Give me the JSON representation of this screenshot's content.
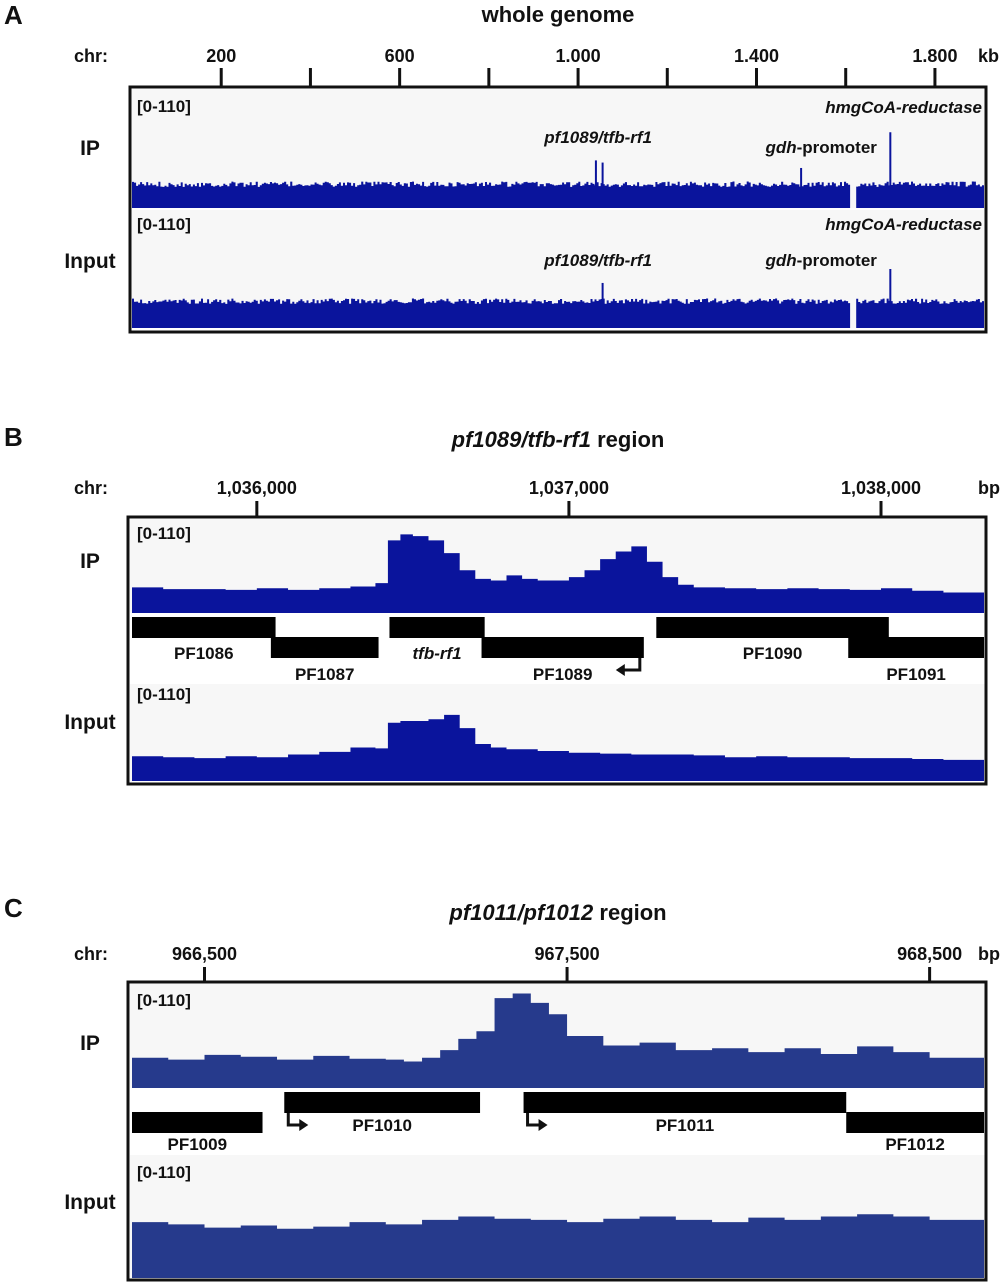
{
  "colors": {
    "signal_a": "#0a149c",
    "signal_b": "#0a149c",
    "signal_c": "#263a8c",
    "track_bg": "#f7f7f7",
    "frame": "#111111",
    "gene": "#000000"
  },
  "chart_data": [
    {
      "type": "area",
      "panel": "A",
      "title_parts": [
        {
          "text": "whole genome",
          "italic": false
        }
      ],
      "axis_prefix": "chr:",
      "unit": "kb",
      "xlim": [
        0,
        1910
      ],
      "major_ticks": [
        {
          "value": 200,
          "label": "200"
        },
        {
          "value": 600,
          "label": "600"
        },
        {
          "value": 1000,
          "label": "1.000"
        },
        {
          "value": 1400,
          "label": "1.400"
        },
        {
          "value": 1800,
          "label": "1.800"
        }
      ],
      "minor_ticks": [
        400,
        800,
        1200,
        1600
      ],
      "tracks": [
        {
          "name": "IP",
          "range_label": "[0-110]",
          "ylim": [
            0,
            110
          ],
          "baseline": 22,
          "gap": [
            1610,
            1625
          ],
          "peaks": [
            {
              "x": 1040,
              "y": 44
            },
            {
              "x": 1055,
              "y": 42
            },
            {
              "x": 1500,
              "y": 37
            },
            {
              "x": 1700,
              "y": 70
            }
          ],
          "annotations": [
            {
              "parts": [
                {
                  "text": "hmgCoA-reductase",
                  "italic": true
                }
              ],
              "x": 1910,
              "level": 1,
              "anchor": "end"
            },
            {
              "parts": [
                {
                  "text": "pf1089/tfb-rf1",
                  "italic": true
                }
              ],
              "x": 1045,
              "level": 2,
              "anchor": "middle"
            },
            {
              "parts": [
                {
                  "text": "gdh",
                  "italic": true
                },
                {
                  "text": "-promoter",
                  "italic": false
                }
              ],
              "x": 1545,
              "level": 3,
              "anchor": "middle"
            }
          ]
        },
        {
          "name": "Input",
          "range_label": "[0-110]",
          "ylim": [
            0,
            110
          ],
          "baseline": 25,
          "gap": [
            1610,
            1625
          ],
          "peaks": [
            {
              "x": 1055,
              "y": 42
            },
            {
              "x": 1700,
              "y": 55
            }
          ],
          "annotations": [
            {
              "parts": [
                {
                  "text": "hmgCoA-reductase",
                  "italic": true
                }
              ],
              "x": 1910,
              "level": 1,
              "anchor": "end"
            },
            {
              "parts": [
                {
                  "text": "pf1089/tfb-rf1",
                  "italic": true
                }
              ],
              "x": 1045,
              "level": 2,
              "anchor": "middle"
            },
            {
              "parts": [
                {
                  "text": "gdh",
                  "italic": true
                },
                {
                  "text": "-promoter",
                  "italic": false
                }
              ],
              "x": 1545,
              "level": 2,
              "anchor": "middle"
            }
          ]
        }
      ]
    },
    {
      "type": "area",
      "panel": "B",
      "title_parts": [
        {
          "text": "pf1089/tfb-rf1",
          "italic": true
        },
        {
          "text": " region",
          "italic": false
        }
      ],
      "axis_prefix": "chr:",
      "unit": "bp",
      "xlim": [
        1035600,
        1038330
      ],
      "major_ticks": [
        {
          "value": 1036000,
          "label": "1,036,000"
        },
        {
          "value": 1037000,
          "label": "1,037,000"
        },
        {
          "value": 1038000,
          "label": "1,038,000"
        }
      ],
      "minor_ticks": [],
      "genes": [
        {
          "name": "PF1086",
          "italic": false,
          "start": 1035600,
          "end": 1036060,
          "row": 0,
          "arrow": null
        },
        {
          "name": "PF1087",
          "italic": false,
          "start": 1036045,
          "end": 1036390,
          "row": 1,
          "arrow": null
        },
        {
          "name": "tfb-rf1",
          "italic": true,
          "start": 1036425,
          "end": 1036730,
          "row": 0,
          "arrow": null
        },
        {
          "name": "PF1089",
          "italic": false,
          "start": 1036720,
          "end": 1037240,
          "row": 1,
          "arrow": "left"
        },
        {
          "name": "PF1090",
          "italic": false,
          "start": 1037280,
          "end": 1038025,
          "row": 0,
          "arrow": null
        },
        {
          "name": "PF1091",
          "italic": false,
          "start": 1037895,
          "end": 1038330,
          "row": 1,
          "arrow": null
        }
      ],
      "tracks": [
        {
          "name": "IP",
          "range_label": "[0-110]",
          "ylim": [
            0,
            110
          ],
          "x": [
            1035600,
            1035700,
            1035800,
            1035900,
            1036000,
            1036100,
            1036200,
            1036300,
            1036380,
            1036420,
            1036460,
            1036500,
            1036550,
            1036600,
            1036650,
            1036700,
            1036750,
            1036800,
            1036850,
            1036900,
            1036950,
            1037000,
            1037050,
            1037100,
            1037150,
            1037200,
            1037250,
            1037300,
            1037350,
            1037400,
            1037500,
            1037600,
            1037700,
            1037800,
            1037900,
            1038000,
            1038100,
            1038200,
            1038330
          ],
          "values": [
            30,
            28,
            28,
            27,
            29,
            27,
            29,
            31,
            35,
            85,
            92,
            90,
            85,
            70,
            50,
            40,
            38,
            44,
            40,
            38,
            38,
            42,
            50,
            63,
            72,
            78,
            60,
            42,
            33,
            30,
            29,
            28,
            29,
            28,
            27,
            29,
            26,
            24,
            25
          ]
        },
        {
          "name": "Input",
          "range_label": "[0-110]",
          "ylim": [
            0,
            110
          ],
          "x": [
            1035600,
            1035700,
            1035800,
            1035900,
            1036000,
            1036100,
            1036200,
            1036300,
            1036380,
            1036420,
            1036460,
            1036500,
            1036550,
            1036600,
            1036650,
            1036700,
            1036750,
            1036800,
            1036900,
            1037000,
            1037100,
            1037200,
            1037300,
            1037400,
            1037500,
            1037600,
            1037700,
            1037800,
            1037900,
            1038000,
            1038100,
            1038200,
            1038330
          ],
          "values": [
            28,
            27,
            26,
            28,
            27,
            30,
            33,
            38,
            37,
            66,
            68,
            68,
            70,
            75,
            60,
            42,
            38,
            36,
            34,
            32,
            31,
            30,
            30,
            29,
            27,
            28,
            27,
            27,
            26,
            26,
            25,
            24,
            25
          ]
        }
      ]
    },
    {
      "type": "area",
      "panel": "C",
      "title_parts": [
        {
          "text": "pf1011/pf1012",
          "italic": true
        },
        {
          "text": " region",
          "italic": false
        }
      ],
      "axis_prefix": "chr:",
      "unit": "bp",
      "xlim": [
        966300,
        968650
      ],
      "major_ticks": [
        {
          "value": 966500,
          "label": "966,500"
        },
        {
          "value": 967500,
          "label": "967,500"
        },
        {
          "value": 968500,
          "label": "968,500"
        }
      ],
      "minor_ticks": [],
      "genes": [
        {
          "name": "PF1009",
          "italic": false,
          "start": 966300,
          "end": 966660,
          "row": 1,
          "arrow": null
        },
        {
          "name": "PF1010",
          "italic": false,
          "start": 966720,
          "end": 967260,
          "row": 0,
          "arrow": "right"
        },
        {
          "name": "PF1011",
          "italic": false,
          "start": 967380,
          "end": 968270,
          "row": 0,
          "arrow": "right"
        },
        {
          "name": "PF1012",
          "italic": false,
          "start": 968270,
          "end": 968650,
          "row": 1,
          "arrow": null
        }
      ],
      "tracks": [
        {
          "name": "IP",
          "range_label": "[0-110]",
          "ylim": [
            0,
            110
          ],
          "x": [
            966300,
            966400,
            966500,
            966600,
            966700,
            966800,
            966900,
            967000,
            967050,
            967100,
            967150,
            967200,
            967250,
            967300,
            967350,
            967400,
            967450,
            967500,
            967600,
            967700,
            967800,
            967900,
            968000,
            968100,
            968200,
            968300,
            968400,
            968500,
            968650
          ],
          "values": [
            32,
            30,
            35,
            33,
            30,
            34,
            31,
            30,
            28,
            32,
            40,
            52,
            60,
            95,
            100,
            90,
            78,
            55,
            45,
            48,
            40,
            42,
            38,
            42,
            36,
            44,
            38,
            32,
            31
          ]
        },
        {
          "name": "Input",
          "range_label": "[0-110]",
          "ylim": [
            0,
            110
          ],
          "x": [
            966300,
            966400,
            966500,
            966600,
            966700,
            966800,
            966900,
            967000,
            967100,
            967200,
            967300,
            967400,
            967500,
            967600,
            967700,
            967800,
            967900,
            968000,
            968100,
            968200,
            968300,
            968400,
            968500,
            968650
          ],
          "values": [
            50,
            48,
            45,
            47,
            44,
            46,
            50,
            48,
            52,
            55,
            53,
            52,
            50,
            53,
            55,
            52,
            50,
            54,
            52,
            55,
            57,
            55,
            52,
            50
          ]
        }
      ]
    }
  ]
}
